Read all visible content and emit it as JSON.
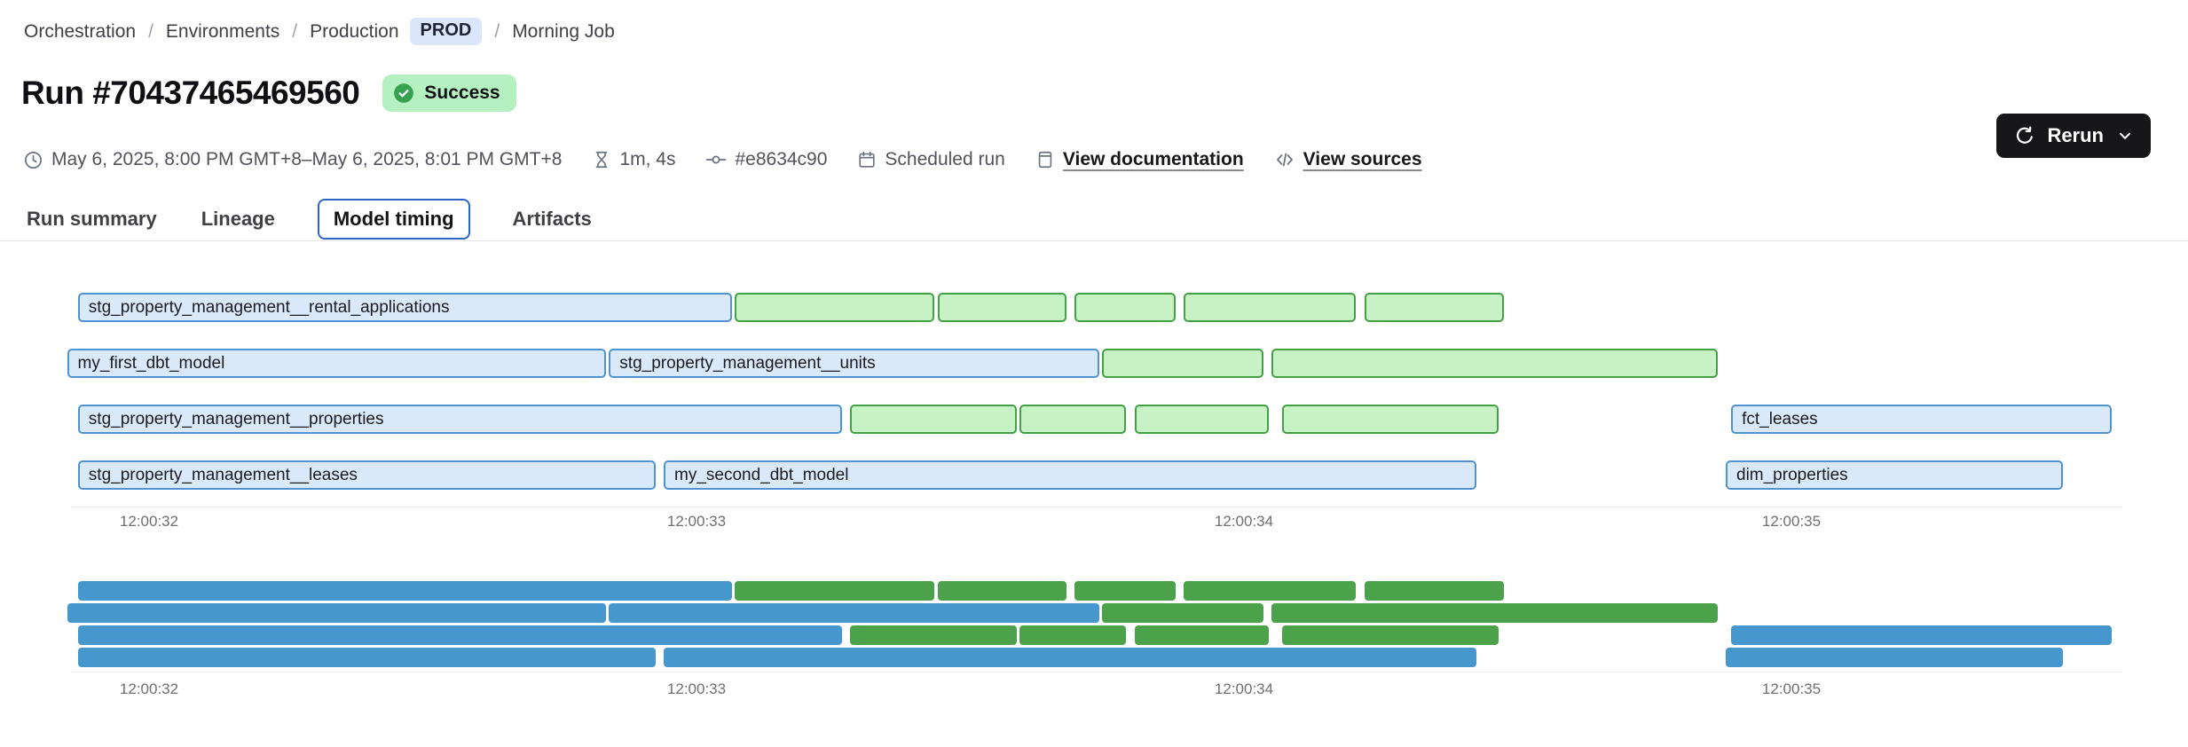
{
  "breadcrumb": {
    "separator": "/",
    "items": [
      "Orchestration",
      "Environments",
      "Production",
      "Morning Job"
    ],
    "env_badge": "PROD"
  },
  "header": {
    "title": "Run #70437465469560",
    "status_badge": "Success",
    "rerun_label": "Rerun"
  },
  "meta": {
    "time_range": "May 6, 2025, 8:00 PM GMT+8–May 6, 2025, 8:01 PM GMT+8",
    "duration": "1m, 4s",
    "commit": "#e8634c90",
    "trigger": "Scheduled run",
    "docs_link": "View documentation",
    "sources_link": "View sources"
  },
  "tabs": [
    {
      "label": "Run summary",
      "active": false
    },
    {
      "label": "Lineage",
      "active": false
    },
    {
      "label": "Model timing",
      "active": true
    },
    {
      "label": "Artifacts",
      "active": false
    }
  ],
  "icons": [
    "clock-icon",
    "hourglass-icon",
    "commit-icon",
    "calendar-icon",
    "document-icon",
    "code-icon",
    "check-circle-icon",
    "refresh-icon",
    "chevron-down-icon"
  ],
  "colors": {
    "accent_blue": "#2b66c4",
    "success_badge_bg": "#b5f0c0",
    "success_icon": "#36a14e",
    "prod_badge_bg": "#dbe6fb",
    "rerun_button_bg": "#17171a",
    "model_bar_fill": "#d9e9fa",
    "model_bar_border": "#5093d2",
    "test_bar_fill": "#c7f2c6",
    "test_bar_border": "#43a044",
    "minimap_model": "#4597ce",
    "minimap_test": "#4ca24b"
  },
  "chart_data": {
    "type": "bar",
    "variant": "gantt-model-timing",
    "title": "Model timing",
    "x_axis": {
      "unit": "seconds after 12:00:00",
      "range": [
        31.8,
        35.7
      ],
      "ticks": [
        {
          "value": 32,
          "label": "12:00:32"
        },
        {
          "value": 33,
          "label": "12:00:33"
        },
        {
          "value": 34,
          "label": "12:00:34"
        },
        {
          "value": 35,
          "label": "12:00:35"
        }
      ]
    },
    "rows": [
      {
        "segments": [
          {
            "label": "stg_property_management__rental_applications",
            "kind": "model",
            "start": 31.87,
            "end": 33.07
          },
          {
            "label": null,
            "kind": "test",
            "start": 33.07,
            "end": 33.44
          },
          {
            "label": null,
            "kind": "test",
            "start": 33.44,
            "end": 33.68
          },
          {
            "label": null,
            "kind": "test",
            "start": 33.69,
            "end": 33.88
          },
          {
            "label": null,
            "kind": "test",
            "start": 33.89,
            "end": 34.21
          },
          {
            "label": null,
            "kind": "test",
            "start": 34.22,
            "end": 34.48
          }
        ]
      },
      {
        "segments": [
          {
            "label": "my_first_dbt_model",
            "kind": "model",
            "start": 31.85,
            "end": 32.84
          },
          {
            "label": "stg_property_management__units",
            "kind": "model",
            "start": 32.84,
            "end": 33.74
          },
          {
            "label": null,
            "kind": "test",
            "start": 33.74,
            "end": 34.04
          },
          {
            "label": null,
            "kind": "test",
            "start": 34.05,
            "end": 34.87
          }
        ]
      },
      {
        "segments": [
          {
            "label": "stg_property_management__properties",
            "kind": "model",
            "start": 31.87,
            "end": 33.27
          },
          {
            "label": null,
            "kind": "test",
            "start": 33.28,
            "end": 33.59
          },
          {
            "label": null,
            "kind": "test",
            "start": 33.59,
            "end": 33.79
          },
          {
            "label": null,
            "kind": "test",
            "start": 33.8,
            "end": 34.05
          },
          {
            "label": null,
            "kind": "test",
            "start": 34.07,
            "end": 34.47
          },
          {
            "label": "fct_leases",
            "kind": "model",
            "start": 34.89,
            "end": 35.59
          }
        ]
      },
      {
        "segments": [
          {
            "label": "stg_property_management__leases",
            "kind": "model",
            "start": 31.87,
            "end": 32.93
          },
          {
            "label": "my_second_dbt_model",
            "kind": "model",
            "start": 32.94,
            "end": 34.43
          },
          {
            "label": "dim_properties",
            "kind": "model",
            "start": 34.88,
            "end": 35.5
          }
        ]
      }
    ],
    "legend": null,
    "grid": false
  }
}
